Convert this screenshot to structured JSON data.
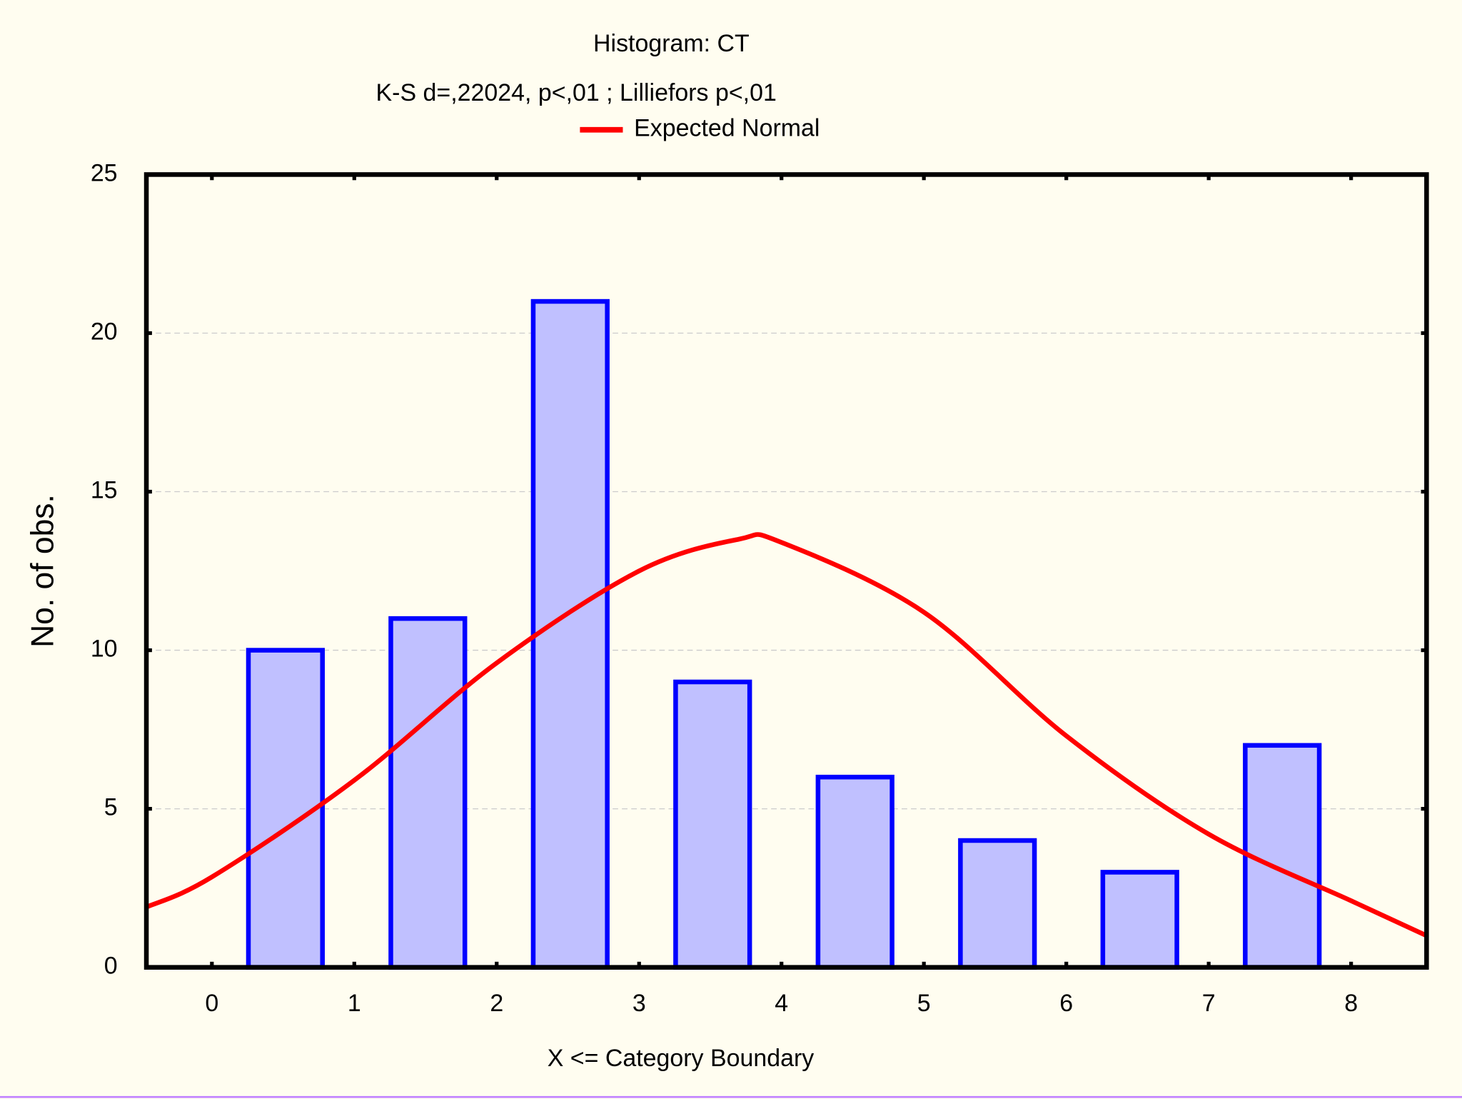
{
  "chart_data": {
    "type": "histogram",
    "title": "Histogram: CT",
    "subtitle": "K-S d=,22024, p<,01 ; Lilliefors p<,01",
    "x_label": "X <= Category Boundary",
    "y_label": "No. of obs.",
    "bins": [
      0,
      1,
      2,
      3,
      4,
      5,
      6,
      7,
      8
    ],
    "counts": [
      10,
      11,
      21,
      9,
      6,
      4,
      3,
      7
    ],
    "color": "#c0c0ff",
    "edge_color": "#0000ff",
    "curve": {
      "name": "Expected Normal",
      "color": "#ff0000",
      "x": [
        -0.46,
        0,
        1,
        2,
        3,
        3.7,
        4,
        5,
        6,
        7,
        8,
        8.53
      ],
      "values": [
        1.9,
        2.85,
        5.9,
        9.6,
        12.5,
        13.5,
        13.4,
        11.2,
        7.3,
        4.2,
        2.1,
        1.0
      ]
    },
    "xlim": [
      -0.46,
      8.53
    ],
    "xticks": [
      0,
      1,
      2,
      3,
      4,
      5,
      6,
      7,
      8
    ],
    "ylim": [
      0,
      25
    ],
    "yticks": [
      0,
      5,
      10,
      15,
      20,
      25
    ],
    "grid": true,
    "legend": "top"
  }
}
